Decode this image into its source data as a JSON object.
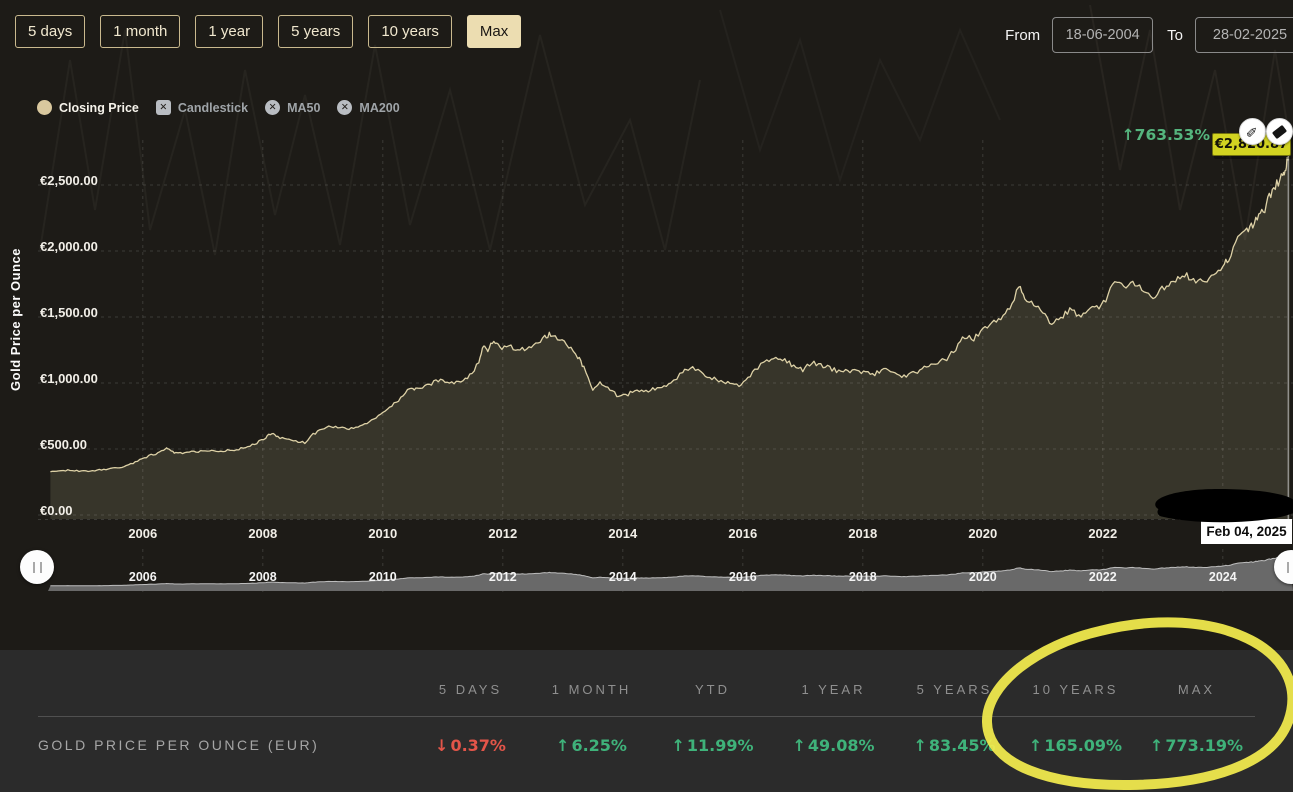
{
  "toolbar": {
    "buttons": [
      {
        "label": "5 days",
        "active": false
      },
      {
        "label": "1 month",
        "active": false
      },
      {
        "label": "1 year",
        "active": false
      },
      {
        "label": "5 years",
        "active": false
      },
      {
        "label": "10 years",
        "active": false
      },
      {
        "label": "Max",
        "active": true
      }
    ],
    "from_label": "From",
    "from_value": "18-06-2004",
    "to_label": "To",
    "to_value": "28-02-2025"
  },
  "legend": {
    "items": [
      {
        "label": "Closing Price",
        "active": true,
        "marker": "circle"
      },
      {
        "label": "Candlestick",
        "active": false,
        "marker": "square"
      },
      {
        "label": "MA50",
        "active": false,
        "marker": "circle"
      },
      {
        "label": "MA200",
        "active": false,
        "marker": "circle"
      }
    ]
  },
  "annotation": {
    "change_arrow": "↑",
    "change_pct": "763.53%",
    "price_label": "€2,820.87",
    "tooltip_date": "Feb 04, 2025"
  },
  "icons": {
    "pencil": "✎",
    "up": "↑",
    "down": "↓",
    "close": "✕"
  },
  "colors": {
    "accent_tan": "#ecddb1",
    "line": "#ddd1a6",
    "area_fill": "rgba(221,209,166,0.14)",
    "green": "#3fb27a",
    "red": "#e25549",
    "highlight_yellow": "#f3ec4e",
    "price_label_bg": "#d2d321",
    "nav_fill": "#6e6e6e",
    "panel_bg": "#2b2b2b"
  },
  "chart_data": {
    "type": "area",
    "title": "",
    "ylabel": "Gold Price per Ounce",
    "xlabel": "",
    "grid": true,
    "currency": "EUR",
    "xlim": [
      2004.42,
      2025.17
    ],
    "ylim": [
      0,
      2900
    ],
    "y_ticks": [
      {
        "v": 0,
        "label": "€0.00"
      },
      {
        "v": 500,
        "label": "€500.00"
      },
      {
        "v": 1000,
        "label": "€1,000.00"
      },
      {
        "v": 1500,
        "label": "€1,500.00"
      },
      {
        "v": 2000,
        "label": "€2,000.00"
      },
      {
        "v": 2500,
        "label": "€2,500.00"
      }
    ],
    "x_ticks": [
      2006,
      2008,
      2010,
      2012,
      2014,
      2016,
      2018,
      2020,
      2022,
      2024
    ],
    "crosshair_x": 2025.09,
    "last_price": 2820.87,
    "series": [
      {
        "name": "Closing Price",
        "color": "#ddd1a6",
        "points": [
          [
            2004.46,
            327
          ],
          [
            2004.6,
            334
          ],
          [
            2004.75,
            340
          ],
          [
            2004.9,
            335
          ],
          [
            2005.05,
            331
          ],
          [
            2005.2,
            337
          ],
          [
            2005.35,
            345
          ],
          [
            2005.5,
            352
          ],
          [
            2005.65,
            362
          ],
          [
            2005.8,
            385
          ],
          [
            2005.95,
            420
          ],
          [
            2006.1,
            448
          ],
          [
            2006.25,
            468
          ],
          [
            2006.38,
            505
          ],
          [
            2006.45,
            495
          ],
          [
            2006.55,
            468
          ],
          [
            2006.7,
            472
          ],
          [
            2006.85,
            478
          ],
          [
            2007.0,
            482
          ],
          [
            2007.15,
            492
          ],
          [
            2007.3,
            486
          ],
          [
            2007.45,
            490
          ],
          [
            2007.6,
            498
          ],
          [
            2007.75,
            520
          ],
          [
            2007.9,
            545
          ],
          [
            2008.05,
            588
          ],
          [
            2008.15,
            620
          ],
          [
            2008.25,
            592
          ],
          [
            2008.4,
            572
          ],
          [
            2008.55,
            560
          ],
          [
            2008.7,
            548
          ],
          [
            2008.8,
            600
          ],
          [
            2008.95,
            640
          ],
          [
            2009.1,
            672
          ],
          [
            2009.25,
            664
          ],
          [
            2009.4,
            650
          ],
          [
            2009.55,
            665
          ],
          [
            2009.7,
            690
          ],
          [
            2009.85,
            725
          ],
          [
            2010.0,
            782
          ],
          [
            2010.15,
            820
          ],
          [
            2010.3,
            890
          ],
          [
            2010.45,
            965
          ],
          [
            2010.55,
            950
          ],
          [
            2010.7,
            968
          ],
          [
            2010.85,
            1005
          ],
          [
            2011.0,
            1025
          ],
          [
            2011.15,
            995
          ],
          [
            2011.3,
            1020
          ],
          [
            2011.45,
            1055
          ],
          [
            2011.6,
            1150
          ],
          [
            2011.68,
            1290
          ],
          [
            2011.75,
            1255
          ],
          [
            2011.85,
            1310
          ],
          [
            2011.95,
            1265
          ],
          [
            2012.1,
            1285
          ],
          [
            2012.25,
            1245
          ],
          [
            2012.4,
            1260
          ],
          [
            2012.55,
            1285
          ],
          [
            2012.7,
            1345
          ],
          [
            2012.8,
            1372
          ],
          [
            2012.95,
            1330
          ],
          [
            2013.1,
            1270
          ],
          [
            2013.25,
            1200
          ],
          [
            2013.35,
            1115
          ],
          [
            2013.5,
            955
          ],
          [
            2013.62,
            1005
          ],
          [
            2013.75,
            975
          ],
          [
            2013.9,
            905
          ],
          [
            2014.05,
            902
          ],
          [
            2014.2,
            948
          ],
          [
            2014.35,
            935
          ],
          [
            2014.5,
            952
          ],
          [
            2014.65,
            965
          ],
          [
            2014.8,
            992
          ],
          [
            2015.0,
            1082
          ],
          [
            2015.12,
            1122
          ],
          [
            2015.3,
            1075
          ],
          [
            2015.45,
            1042
          ],
          [
            2015.6,
            1018
          ],
          [
            2015.75,
            1000
          ],
          [
            2015.9,
            978
          ],
          [
            2016.05,
            1015
          ],
          [
            2016.2,
            1105
          ],
          [
            2016.4,
            1165
          ],
          [
            2016.55,
            1205
          ],
          [
            2016.7,
            1172
          ],
          [
            2016.85,
            1128
          ],
          [
            2017.0,
            1102
          ],
          [
            2017.15,
            1158
          ],
          [
            2017.3,
            1135
          ],
          [
            2017.45,
            1112
          ],
          [
            2017.6,
            1088
          ],
          [
            2017.75,
            1095
          ],
          [
            2017.9,
            1088
          ],
          [
            2018.05,
            1078
          ],
          [
            2018.2,
            1068
          ],
          [
            2018.35,
            1105
          ],
          [
            2018.5,
            1072
          ],
          [
            2018.65,
            1042
          ],
          [
            2018.8,
            1065
          ],
          [
            2018.95,
            1095
          ],
          [
            2019.1,
            1132
          ],
          [
            2019.25,
            1148
          ],
          [
            2019.4,
            1185
          ],
          [
            2019.55,
            1262
          ],
          [
            2019.7,
            1355
          ],
          [
            2019.85,
            1332
          ],
          [
            2020.0,
            1405
          ],
          [
            2020.15,
            1452
          ],
          [
            2020.3,
            1500
          ],
          [
            2020.45,
            1568
          ],
          [
            2020.6,
            1738
          ],
          [
            2020.7,
            1652
          ],
          [
            2020.85,
            1588
          ],
          [
            2021.0,
            1532
          ],
          [
            2021.15,
            1448
          ],
          [
            2021.3,
            1502
          ],
          [
            2021.45,
            1548
          ],
          [
            2021.6,
            1512
          ],
          [
            2021.75,
            1542
          ],
          [
            2021.9,
            1572
          ],
          [
            2022.05,
            1625
          ],
          [
            2022.2,
            1772
          ],
          [
            2022.35,
            1725
          ],
          [
            2022.5,
            1748
          ],
          [
            2022.65,
            1712
          ],
          [
            2022.8,
            1648
          ],
          [
            2022.95,
            1698
          ],
          [
            2023.1,
            1752
          ],
          [
            2023.25,
            1802
          ],
          [
            2023.4,
            1815
          ],
          [
            2023.55,
            1782
          ],
          [
            2023.7,
            1768
          ],
          [
            2023.85,
            1835
          ],
          [
            2024.0,
            1878
          ],
          [
            2024.1,
            1942
          ],
          [
            2024.25,
            2085
          ],
          [
            2024.4,
            2162
          ],
          [
            2024.5,
            2195
          ],
          [
            2024.6,
            2258
          ],
          [
            2024.7,
            2325
          ],
          [
            2024.8,
            2438
          ],
          [
            2024.9,
            2502
          ],
          [
            2025.0,
            2582
          ],
          [
            2025.05,
            2648
          ],
          [
            2025.09,
            2728
          ],
          [
            2025.12,
            2820.87
          ]
        ]
      }
    ]
  },
  "navigator": {
    "x_ticks": [
      2006,
      2008,
      2010,
      2012,
      2014,
      2016,
      2018,
      2020,
      2022,
      2024
    ]
  },
  "table": {
    "columns": [
      "5 DAYS",
      "1 MONTH",
      "YTD",
      "1 YEAR",
      "5 YEARS",
      "10 YEARS",
      "MAX"
    ],
    "rows": [
      {
        "label": "GOLD PRICE PER OUNCE (EUR)",
        "values": [
          {
            "dir": "down",
            "text": "0.37%"
          },
          {
            "dir": "up",
            "text": "6.25%"
          },
          {
            "dir": "up",
            "text": "11.99%"
          },
          {
            "dir": "up",
            "text": "49.08%"
          },
          {
            "dir": "up",
            "text": "83.45%"
          },
          {
            "dir": "up",
            "text": "165.09%"
          },
          {
            "dir": "up",
            "text": "773.19%"
          }
        ]
      }
    ]
  }
}
